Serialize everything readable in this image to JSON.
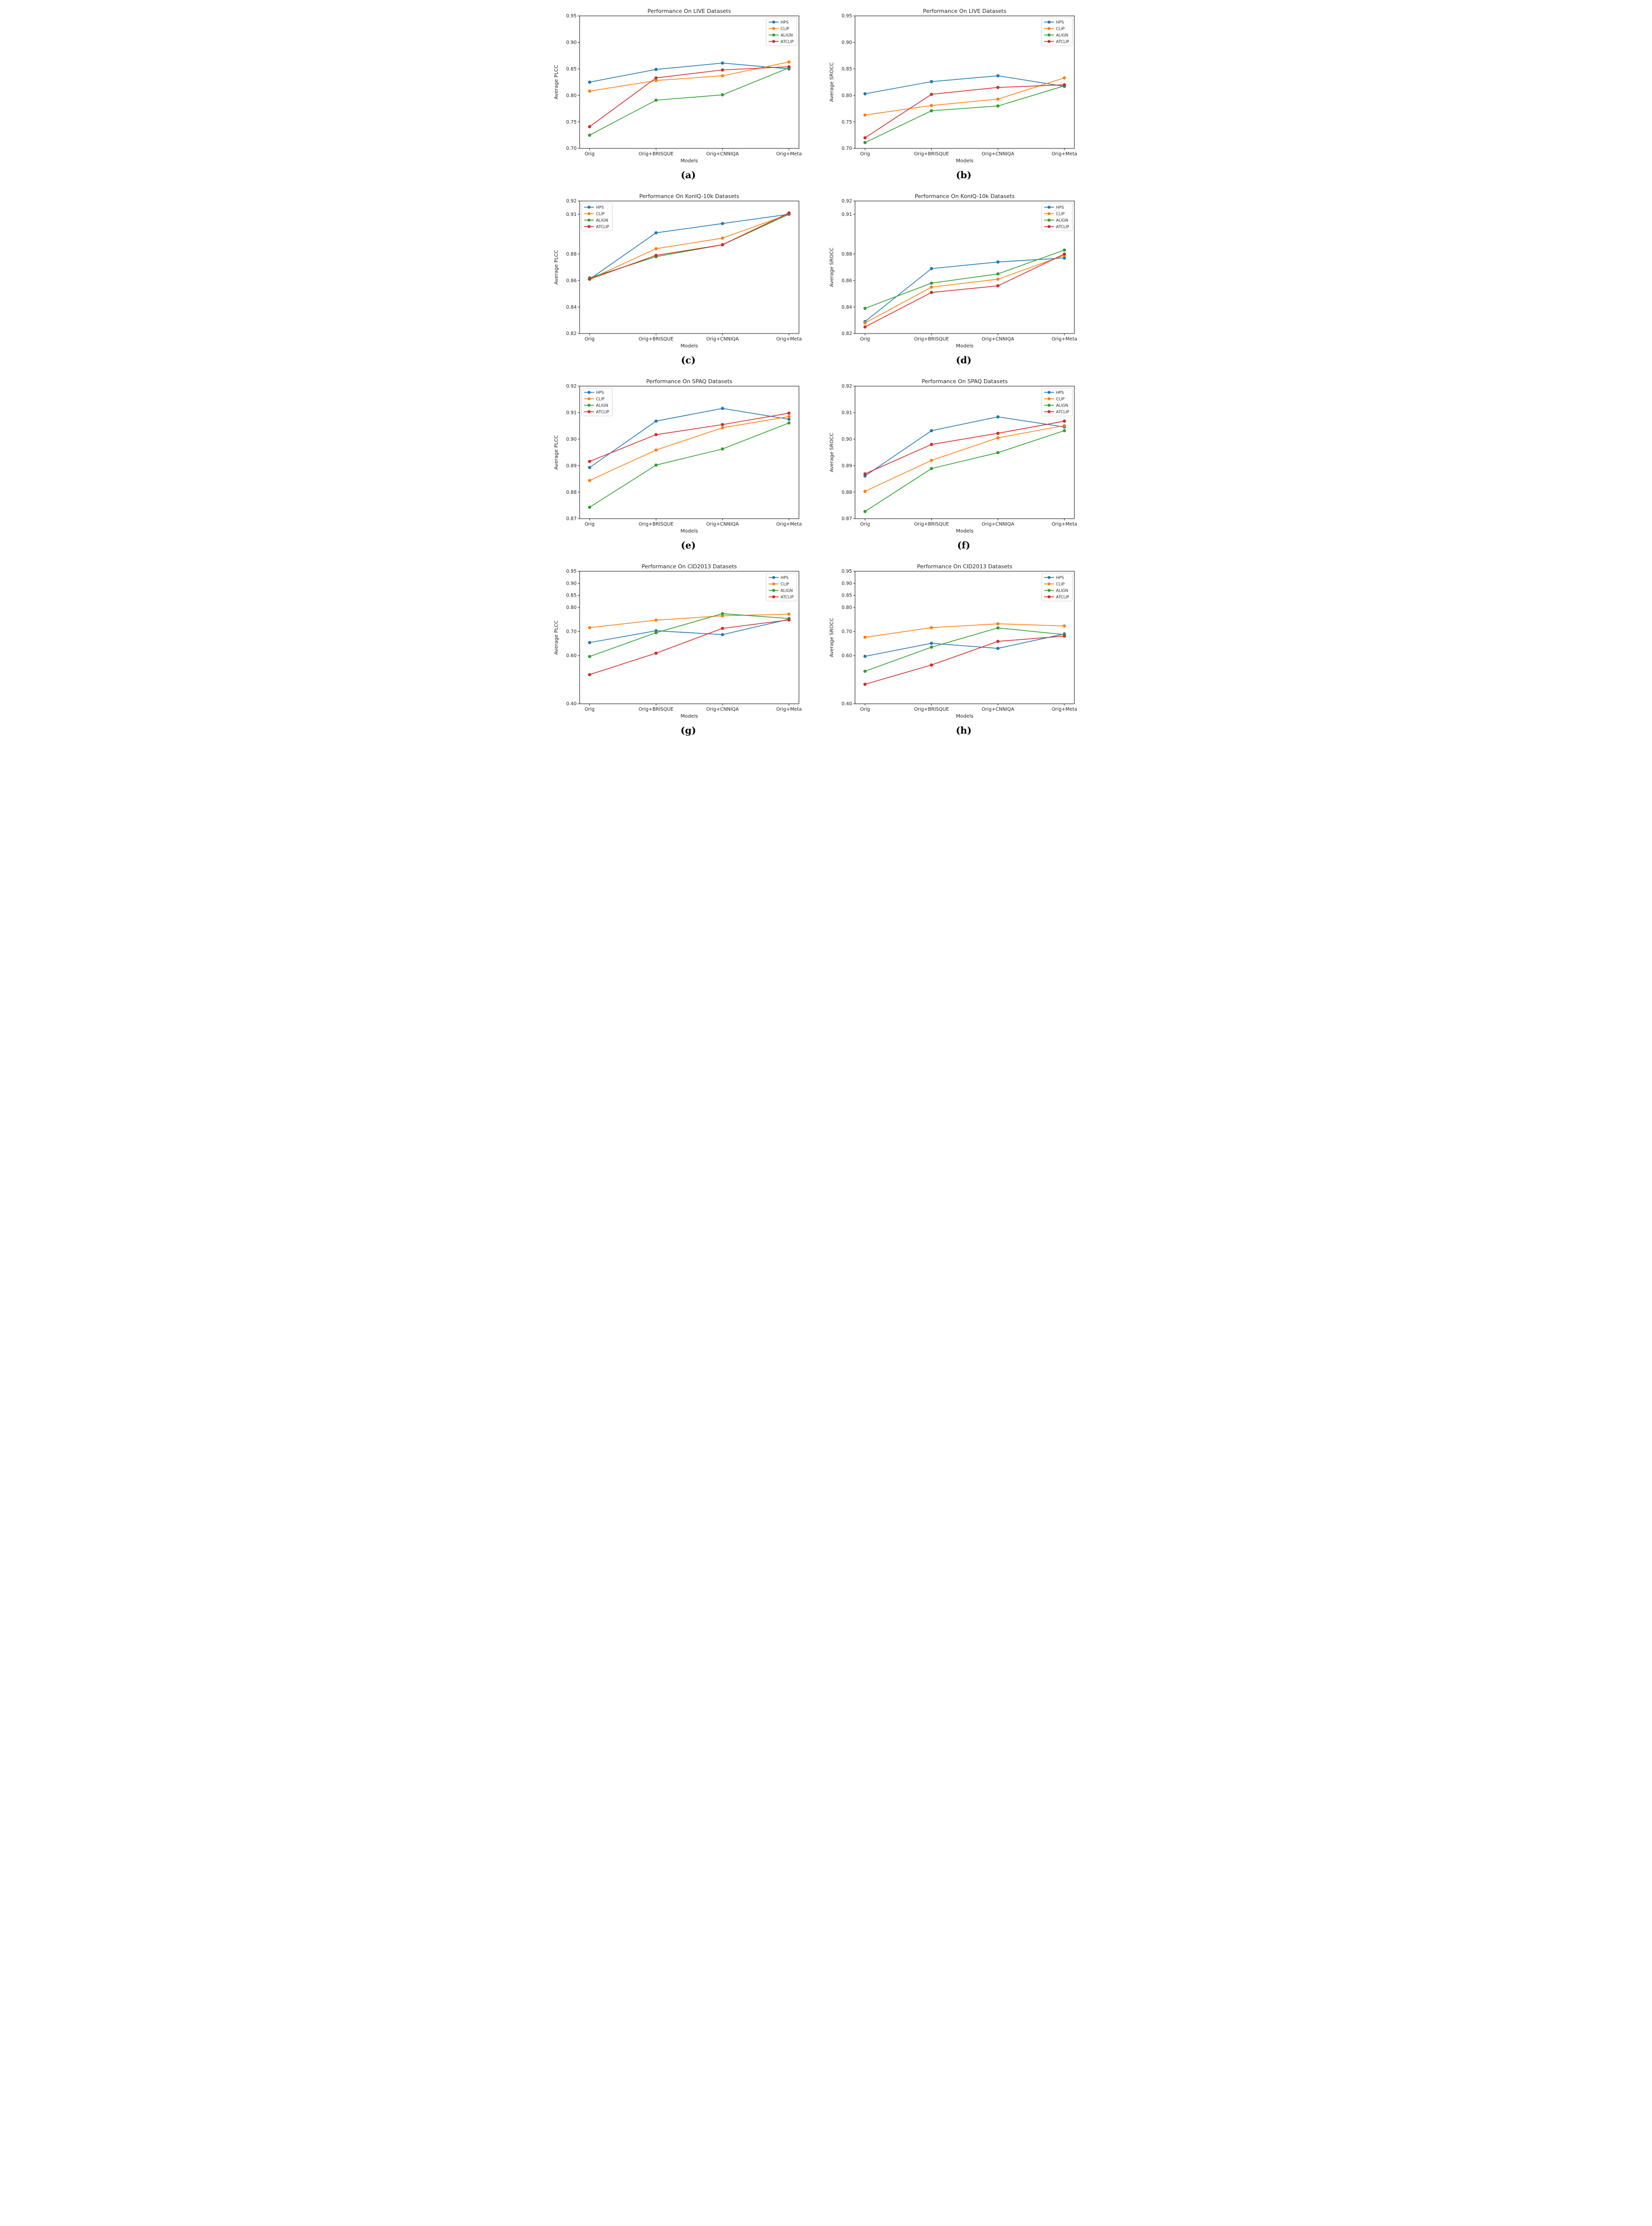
{
  "page": {
    "background": "#ffffff",
    "text_color": "#262626"
  },
  "shared": {
    "xlabel": "Models",
    "categories": [
      "Orig",
      "Orig+BRISQUE",
      "Orig+CNNIQA",
      "Orig+Meta"
    ],
    "legend_entries": [
      "HPS",
      "CLIP",
      "ALIGN",
      "ATCLIP"
    ],
    "series_colors": {
      "HPS": "#1f77b4",
      "CLIP": "#ff7f0e",
      "ALIGN": "#2ca02c",
      "ATCLIP": "#d62728"
    }
  },
  "chart_data": [
    {
      "id": "a",
      "caption": "(a)",
      "type": "line",
      "title": "Performance On LIVE Datasets",
      "xlabel": "Models",
      "ylabel": "Average PLCC",
      "categories": [
        "Orig",
        "Orig+BRISQUE",
        "Orig+CNNIQA",
        "Orig+Meta"
      ],
      "ylim": [
        0.7,
        0.95
      ],
      "yticks": [
        0.7,
        0.75,
        0.8,
        0.85,
        0.9,
        0.95
      ],
      "grid": false,
      "legend_position": "upper-right",
      "series": [
        {
          "name": "HPS",
          "values": [
            0.825,
            0.849,
            0.861,
            0.85
          ]
        },
        {
          "name": "CLIP",
          "values": [
            0.808,
            0.828,
            0.837,
            0.863
          ]
        },
        {
          "name": "ALIGN",
          "values": [
            0.725,
            0.791,
            0.801,
            0.852
          ]
        },
        {
          "name": "ATCLIP",
          "values": [
            0.741,
            0.833,
            0.848,
            0.854
          ]
        }
      ]
    },
    {
      "id": "b",
      "caption": "(b)",
      "type": "line",
      "title": "Performance On LIVE Datasets",
      "xlabel": "Models",
      "ylabel": "Average SROCC",
      "categories": [
        "Orig",
        "Orig+BRISQUE",
        "Orig+CNNIQA",
        "Orig+Meta"
      ],
      "ylim": [
        0.7,
        0.95
      ],
      "yticks": [
        0.7,
        0.75,
        0.8,
        0.85,
        0.9,
        0.95
      ],
      "grid": false,
      "legend_position": "upper-right",
      "series": [
        {
          "name": "HPS",
          "values": [
            0.803,
            0.826,
            0.837,
            0.817
          ]
        },
        {
          "name": "CLIP",
          "values": [
            0.763,
            0.781,
            0.793,
            0.833
          ]
        },
        {
          "name": "ALIGN",
          "values": [
            0.711,
            0.771,
            0.78,
            0.818
          ]
        },
        {
          "name": "ATCLIP",
          "values": [
            0.72,
            0.802,
            0.815,
            0.82
          ]
        }
      ]
    },
    {
      "id": "c",
      "caption": "(c)",
      "type": "line",
      "title": "Performance On KonIQ-10k Datasets",
      "xlabel": "Models",
      "ylabel": "Average PLCC",
      "categories": [
        "Orig",
        "Orig+BRISQUE",
        "Orig+CNNIQA",
        "Orig+Meta"
      ],
      "ylim": [
        0.82,
        0.92
      ],
      "yticks": [
        0.82,
        0.84,
        0.86,
        0.88,
        0.91,
        0.92
      ],
      "grid": false,
      "legend_position": "upper-left",
      "series": [
        {
          "name": "HPS",
          "values": [
            0.861,
            0.896,
            0.903,
            0.91
          ]
        },
        {
          "name": "CLIP",
          "values": [
            0.861,
            0.884,
            0.892,
            0.91
          ]
        },
        {
          "name": "ALIGN",
          "values": [
            0.862,
            0.878,
            0.887,
            0.91
          ]
        },
        {
          "name": "ATCLIP",
          "values": [
            0.861,
            0.879,
            0.887,
            0.911
          ]
        }
      ]
    },
    {
      "id": "d",
      "caption": "(d)",
      "type": "line",
      "title": "Performance On KonIQ-10k Datasets",
      "xlabel": "Models",
      "ylabel": "Average SROCC",
      "categories": [
        "Orig",
        "Orig+BRISQUE",
        "Orig+CNNIQA",
        "Orig+Meta"
      ],
      "ylim": [
        0.82,
        0.92
      ],
      "yticks": [
        0.82,
        0.84,
        0.86,
        0.88,
        0.91,
        0.92
      ],
      "grid": false,
      "legend_position": "upper-right",
      "series": [
        {
          "name": "HPS",
          "values": [
            0.829,
            0.869,
            0.874,
            0.877
          ]
        },
        {
          "name": "CLIP",
          "values": [
            0.828,
            0.855,
            0.861,
            0.879
          ]
        },
        {
          "name": "ALIGN",
          "values": [
            0.839,
            0.858,
            0.865,
            0.883
          ]
        },
        {
          "name": "ATCLIP",
          "values": [
            0.825,
            0.851,
            0.856,
            0.88
          ]
        }
      ]
    },
    {
      "id": "e",
      "caption": "(e)",
      "type": "line",
      "title": "Performance On SPAQ Datasets",
      "xlabel": "Models",
      "ylabel": "Average PLCC",
      "categories": [
        "Orig",
        "Orig+BRISQUE",
        "Orig+CNNIQA",
        "Orig+Meta"
      ],
      "ylim": [
        0.87,
        0.92
      ],
      "yticks": [
        0.87,
        0.88,
        0.89,
        0.9,
        0.91,
        0.92
      ],
      "grid": false,
      "legend_position": "upper-left",
      "series": [
        {
          "name": "HPS",
          "values": [
            0.8893,
            0.9068,
            0.9116,
            0.9075
          ]
        },
        {
          "name": "CLIP",
          "values": [
            0.8844,
            0.8959,
            0.9043,
            0.9085
          ]
        },
        {
          "name": "ALIGN",
          "values": [
            0.8743,
            0.8902,
            0.8963,
            0.9061
          ]
        },
        {
          "name": "ATCLIP",
          "values": [
            0.8916,
            0.9017,
            0.9055,
            0.9098
          ]
        }
      ]
    },
    {
      "id": "f",
      "caption": "(f)",
      "type": "line",
      "title": "Performance On SPAQ Datasets",
      "xlabel": "Models",
      "ylabel": "Average SROCC",
      "categories": [
        "Orig",
        "Orig+BRISQUE",
        "Orig+CNNIQA",
        "Orig+Meta"
      ],
      "ylim": [
        0.87,
        0.92
      ],
      "yticks": [
        0.87,
        0.88,
        0.89,
        0.9,
        0.91,
        0.92
      ],
      "grid": false,
      "legend_position": "upper-right",
      "series": [
        {
          "name": "HPS",
          "values": [
            0.8861,
            0.9032,
            0.9084,
            0.9046
          ]
        },
        {
          "name": "CLIP",
          "values": [
            0.8803,
            0.892,
            0.9005,
            0.9051
          ]
        },
        {
          "name": "ALIGN",
          "values": [
            0.8727,
            0.8889,
            0.8949,
            0.9032
          ]
        },
        {
          "name": "ATCLIP",
          "values": [
            0.8869,
            0.898,
            0.9022,
            0.9068
          ]
        }
      ]
    },
    {
      "id": "g",
      "caption": "(g)",
      "type": "line",
      "title": "Performance On CID2013 Datasets",
      "xlabel": "Models",
      "ylabel": "Average PLCC",
      "categories": [
        "Orig",
        "Orig+BRISQUE",
        "Orig+CNNIQA",
        "Orig+Meta"
      ],
      "ylim": [
        0.4,
        0.95
      ],
      "yticks": [
        0.4,
        0.6,
        0.7,
        0.8,
        0.85,
        0.9,
        0.95
      ],
      "grid": false,
      "legend_position": "upper-right",
      "series": [
        {
          "name": "HPS",
          "values": [
            0.654,
            0.703,
            0.687,
            0.751
          ]
        },
        {
          "name": "CLIP",
          "values": [
            0.716,
            0.747,
            0.765,
            0.772
          ]
        },
        {
          "name": "ALIGN",
          "values": [
            0.596,
            0.695,
            0.774,
            0.754
          ]
        },
        {
          "name": "ATCLIP",
          "values": [
            0.521,
            0.61,
            0.713,
            0.748
          ]
        }
      ]
    },
    {
      "id": "h",
      "caption": "(h)",
      "type": "line",
      "title": "Performance On CID2013 Datasets",
      "xlabel": "Models",
      "ylabel": "Average SROCC",
      "categories": [
        "Orig",
        "Orig+BRISQUE",
        "Orig+CNNIQA",
        "Orig+Meta"
      ],
      "ylim": [
        0.4,
        0.95
      ],
      "yticks": [
        0.4,
        0.6,
        0.7,
        0.8,
        0.85,
        0.9,
        0.95
      ],
      "grid": false,
      "legend_position": "upper-right",
      "series": [
        {
          "name": "HPS",
          "values": [
            0.597,
            0.651,
            0.63,
            0.69
          ]
        },
        {
          "name": "CLIP",
          "values": [
            0.676,
            0.716,
            0.732,
            0.723
          ]
        },
        {
          "name": "ALIGN",
          "values": [
            0.535,
            0.635,
            0.715,
            0.687
          ]
        },
        {
          "name": "ATCLIP",
          "values": [
            0.481,
            0.561,
            0.659,
            0.681
          ]
        }
      ]
    }
  ]
}
